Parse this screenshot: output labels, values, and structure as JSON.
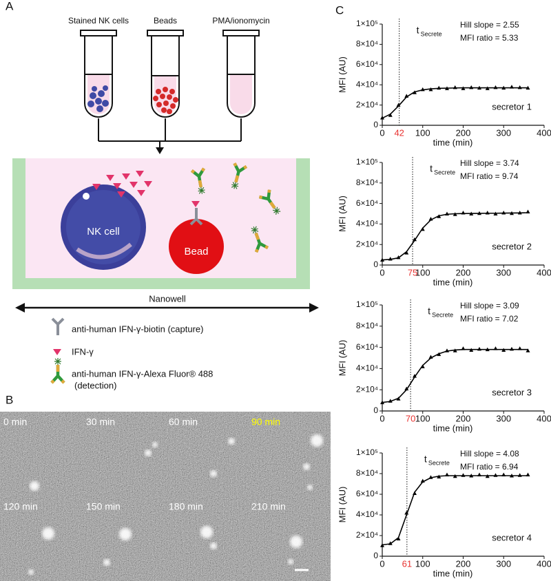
{
  "panel_labels": [
    "A",
    "B",
    "C"
  ],
  "diagram": {
    "tubes": [
      "Stained NK cells",
      "Beads",
      "PMA/ionomycin"
    ],
    "cell_label": "NK cell",
    "bead_label": "Bead",
    "well_label": "Nanowell",
    "legend": [
      "anti-human IFN-γ-biotin (capture)",
      "IFN-γ",
      "anti-human IFN-γ-Alexa Fluor® 488",
      "(detection)"
    ]
  },
  "micrographs": {
    "frames": [
      {
        "label": "0 min",
        "color": "#ffffff"
      },
      {
        "label": "30 min",
        "color": "#ffffff"
      },
      {
        "label": "60 min",
        "color": "#ffffff"
      },
      {
        "label": "90 min",
        "color": "#ffff00"
      },
      {
        "label": "120 min",
        "color": "#ffffff"
      },
      {
        "label": "150 min",
        "color": "#ffffff"
      },
      {
        "label": "180 min",
        "color": "#ffffff"
      },
      {
        "label": "210 min",
        "color": "#ffffff"
      }
    ]
  },
  "chart_data": [
    {
      "type": "line",
      "x": [
        0,
        20,
        40,
        60,
        80,
        100,
        120,
        140,
        160,
        180,
        200,
        220,
        240,
        260,
        280,
        300,
        320,
        340,
        360
      ],
      "series": [
        {
          "color": "#000000",
          "marker": "triangle",
          "values": [
            7500,
            10000,
            20000,
            29000,
            32500,
            35500,
            35500,
            37000,
            36500,
            37500,
            36500,
            37500,
            37000,
            36500,
            37500,
            37000,
            38000,
            37500,
            37000
          ]
        },
        {
          "color": "#000000",
          "values": [
            7000,
            11000,
            19000,
            28000,
            33000,
            35000,
            36000,
            36500,
            36700,
            36900,
            37000,
            37000,
            37000,
            37000,
            37000,
            37000,
            37000,
            37000,
            37000
          ]
        }
      ],
      "xlim": [
        0,
        400
      ],
      "xticks": [
        0,
        100,
        200,
        300,
        400
      ],
      "ylim": [
        0,
        100000
      ],
      "yticks": [
        0,
        {
          "value": 20000,
          "label": "2×10⁴"
        },
        {
          "value": 40000,
          "label": "4×10⁴"
        },
        {
          "value": 60000,
          "label": "6×10⁴"
        },
        {
          "value": 80000,
          "label": "8×10⁴"
        },
        {
          "value": 100000,
          "label": "1×10⁵"
        }
      ],
      "xlabel": "time (min)",
      "ylabel": "MFI (AU)",
      "threshold": {
        "value": 42,
        "color": "#e8312f"
      },
      "threshold_label": "t",
      "threshold_subscript": "Secrete",
      "annotations": [
        "Hill slope = 2.55",
        "MFI ratio = 5.33"
      ],
      "label": "secretor 1"
    },
    {
      "type": "line",
      "x": [
        0,
        20,
        40,
        60,
        80,
        100,
        120,
        140,
        160,
        180,
        200,
        220,
        240,
        260,
        280,
        300,
        320,
        340,
        360
      ],
      "series": [
        {
          "color": "#000000",
          "marker": "triangle",
          "values": [
            5000,
            6000,
            7500,
            12000,
            25000,
            35000,
            45000,
            47500,
            50000,
            49500,
            51000,
            50000,
            50500,
            51000,
            50000,
            51000,
            50500,
            51000,
            52000
          ]
        },
        {
          "color": "#000000",
          "values": [
            5000,
            5500,
            7000,
            13000,
            24000,
            36000,
            44000,
            48000,
            49500,
            50000,
            50200,
            50300,
            50400,
            50500,
            50500,
            50600,
            50700,
            50800,
            51000
          ]
        }
      ],
      "xlim": [
        0,
        400
      ],
      "xticks": [
        0,
        100,
        200,
        300,
        400
      ],
      "ylim": [
        0,
        100000
      ],
      "yticks": [
        0,
        {
          "value": 20000,
          "label": "2×10⁴"
        },
        {
          "value": 40000,
          "label": "4×10⁴"
        },
        {
          "value": 60000,
          "label": "6×10⁴"
        },
        {
          "value": 80000,
          "label": "8×10⁴"
        },
        {
          "value": 100000,
          "label": "1×10⁵"
        }
      ],
      "xlabel": "time (min)",
      "ylabel": "MFI (AU)",
      "threshold": {
        "value": 75,
        "color": "#e8312f"
      },
      "threshold_label": "t",
      "threshold_subscript": "Secrete",
      "annotations": [
        "Hill slope = 3.74",
        "MFI ratio = 9.74"
      ],
      "label": "secretor 2"
    },
    {
      "type": "line",
      "x": [
        0,
        20,
        40,
        60,
        80,
        100,
        120,
        140,
        160,
        180,
        200,
        220,
        240,
        260,
        280,
        300,
        320,
        340,
        360
      ],
      "series": [
        {
          "color": "#000000",
          "marker": "triangle",
          "values": [
            8000,
            9500,
            11500,
            21000,
            33000,
            42000,
            51000,
            53500,
            57000,
            57000,
            59000,
            57500,
            58500,
            58000,
            59000,
            57500,
            58500,
            59000,
            57000
          ]
        },
        {
          "color": "#000000",
          "values": [
            8000,
            9000,
            12000,
            20000,
            32000,
            43000,
            50000,
            54000,
            56500,
            57500,
            58000,
            58000,
            58000,
            58000,
            58000,
            58000,
            58000,
            58000,
            58000
          ]
        }
      ],
      "xlim": [
        0,
        400
      ],
      "xticks": [
        0,
        100,
        200,
        300,
        400
      ],
      "ylim": [
        0,
        100000
      ],
      "yticks": [
        0,
        {
          "value": 20000,
          "label": "2×10⁴"
        },
        {
          "value": 40000,
          "label": "4×10⁴"
        },
        {
          "value": 60000,
          "label": "6×10⁴"
        },
        {
          "value": 80000,
          "label": "8×10⁴"
        },
        {
          "value": 100000,
          "label": "1×10⁵"
        }
      ],
      "xlabel": "time (min)",
      "ylabel": "MFI (AU)",
      "threshold": {
        "value": 70,
        "color": "#e8312f"
      },
      "threshold_label": "t",
      "threshold_subscript": "Secrete",
      "annotations": [
        "Hill slope = 3.09",
        "MFI ratio = 7.02"
      ],
      "label": "secretor 3"
    },
    {
      "type": "line",
      "x": [
        0,
        20,
        40,
        60,
        80,
        100,
        120,
        140,
        160,
        180,
        200,
        220,
        240,
        260,
        280,
        300,
        320,
        340,
        360
      ],
      "series": [
        {
          "color": "#000000",
          "marker": "triangle",
          "values": [
            10500,
            12500,
            17000,
            42000,
            61000,
            73000,
            76500,
            77000,
            79000,
            77500,
            78500,
            78000,
            79000,
            77500,
            78500,
            79000,
            78000,
            78500,
            79000
          ]
        },
        {
          "color": "#000000",
          "values": [
            11000,
            12000,
            18000,
            40000,
            62000,
            72000,
            76000,
            77500,
            78000,
            78000,
            78000,
            78000,
            78000,
            78000,
            78000,
            78000,
            78000,
            78000,
            78000
          ]
        }
      ],
      "xlim": [
        0,
        400
      ],
      "xticks": [
        0,
        100,
        200,
        300,
        400
      ],
      "ylim": [
        0,
        100000
      ],
      "yticks": [
        0,
        {
          "value": 20000,
          "label": "2×10⁴"
        },
        {
          "value": 40000,
          "label": "4×10⁴"
        },
        {
          "value": 60000,
          "label": "6×10⁴"
        },
        {
          "value": 80000,
          "label": "8×10⁴"
        },
        {
          "value": 100000,
          "label": "1×10⁵"
        }
      ],
      "xlabel": "time (min)",
      "ylabel": "MFI (AU)",
      "threshold": {
        "value": 61,
        "color": "#e8312f"
      },
      "threshold_label": "t",
      "threshold_subscript": "Secrete",
      "annotations": [
        "Hill slope = 4.08",
        "MFI ratio = 6.94"
      ],
      "label": "secretor 4"
    }
  ]
}
